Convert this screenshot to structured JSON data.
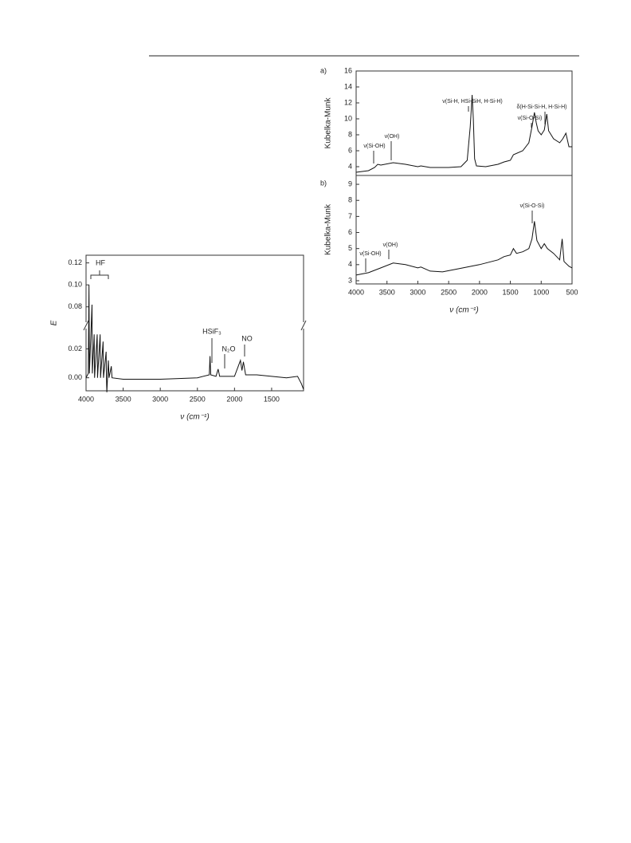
{
  "chart_data": [
    {
      "type": "line",
      "xlabel": "ν (cm⁻¹)",
      "ylabel": "E",
      "color": "#111",
      "xlim": [
        4000,
        1070
      ],
      "xticks": [
        4000,
        3500,
        3000,
        2500,
        2000,
        1500
      ],
      "y_segments": [
        {
          "ylim": [
            -0.009,
            0.034
          ],
          "yticks": [
            {
              "value": 0,
              "label": "0.00"
            },
            {
              "value": 0.02,
              "label": "0.02"
            }
          ]
        },
        {
          "ylim": [
            0.066,
            0.127
          ],
          "yticks": [
            {
              "value": 0.08,
              "label": "0.08"
            },
            {
              "value": 0.1,
              "label": "0.10"
            },
            {
              "value": 0.12,
              "label": "0.12"
            }
          ]
        }
      ],
      "annotations": [
        "HF",
        "HSiF₃",
        "N₂O",
        "NO"
      ],
      "x": [
        4000,
        3970,
        3960,
        3955,
        3920,
        3915,
        3890,
        3885,
        3850,
        3845,
        3810,
        3805,
        3770,
        3765,
        3730,
        3725,
        3720,
        3700,
        3690,
        3660,
        3650,
        3500,
        3000,
        2500,
        2340,
        2330,
        2320,
        2250,
        2220,
        2200,
        2000,
        1920,
        1900,
        1880,
        1850,
        1700,
        1500,
        1300,
        1150,
        1100,
        1070
      ],
      "values": [
        0,
        0.003,
        0.1,
        0.003,
        0.082,
        0.003,
        0.03,
        0,
        0.03,
        0,
        0.03,
        0,
        0.025,
        0,
        0.018,
        0,
        -0.01,
        0.012,
        0,
        0.008,
        0,
        -0.001,
        -0.001,
        0,
        0.002,
        0.015,
        0.002,
        0.001,
        0.006,
        0.001,
        0.001,
        0.012,
        0.005,
        0.011,
        0.002,
        0.002,
        0.001,
        0,
        0.001,
        -0.004,
        -0.008
      ]
    },
    {
      "type": "line",
      "label": "a)",
      "ylabel": "Kubelka-Munk",
      "color": "#111",
      "xlim": [
        4000,
        500
      ],
      "ylim": [
        2.9,
        16
      ],
      "yticks": [
        4,
        6,
        8,
        10,
        12,
        14,
        16
      ],
      "annotations": [
        "ν(Si-OH)",
        "ν(OH)",
        "ν(Si-H, HSi-SiH, H-Si-H)",
        "δ(H-Si-Si-H, H-Si-H)",
        "ν(Si-O-Si)"
      ],
      "x": [
        4000,
        3800,
        3700,
        3650,
        3600,
        3400,
        3200,
        3000,
        2950,
        2800,
        2500,
        2300,
        2200,
        2150,
        2120,
        2100,
        2080,
        2050,
        1900,
        1700,
        1600,
        1500,
        1450,
        1300,
        1200,
        1150,
        1110,
        1080,
        1050,
        1000,
        950,
        910,
        880,
        800,
        700,
        650,
        600,
        550,
        500
      ],
      "values": [
        3.3,
        3.5,
        3.9,
        4.3,
        4.2,
        4.5,
        4.3,
        4.0,
        4.1,
        3.9,
        3.9,
        4.0,
        4.8,
        9,
        13.0,
        10,
        5,
        4.1,
        4.0,
        4.3,
        4.6,
        4.8,
        5.5,
        6.0,
        7.0,
        9,
        10.8,
        9.5,
        8.5,
        8.0,
        8.6,
        10.6,
        8.5,
        7.5,
        7.0,
        7.5,
        8.2,
        6.5,
        6.5
      ]
    },
    {
      "type": "line",
      "label": "b)",
      "xlabel": "ν (cm⁻¹)",
      "ylabel": "Kubelka-Munk",
      "color": "#111",
      "xlim": [
        4000,
        500
      ],
      "xticks": [
        4000,
        3500,
        3000,
        2500,
        2000,
        1500,
        1000,
        500
      ],
      "ylim": [
        2.8,
        9.55
      ],
      "yticks": [
        3,
        4,
        5,
        6,
        7,
        8,
        9
      ],
      "annotations": [
        "ν(Si-OH)",
        "ν(OH)",
        "ν(Si-O-Si)"
      ],
      "x": [
        4000,
        3800,
        3600,
        3400,
        3200,
        3000,
        2950,
        2800,
        2600,
        2400,
        2000,
        1700,
        1600,
        1500,
        1450,
        1400,
        1300,
        1200,
        1150,
        1110,
        1070,
        1000,
        950,
        900,
        800,
        700,
        660,
        630,
        550,
        500
      ],
      "values": [
        3.35,
        3.5,
        3.8,
        4.1,
        4.0,
        3.8,
        3.85,
        3.6,
        3.55,
        3.7,
        4.0,
        4.3,
        4.5,
        4.6,
        5.0,
        4.7,
        4.8,
        5.0,
        5.6,
        6.7,
        5.5,
        5.0,
        5.3,
        5.0,
        4.7,
        4.3,
        5.6,
        4.2,
        3.9,
        3.8
      ]
    }
  ]
}
